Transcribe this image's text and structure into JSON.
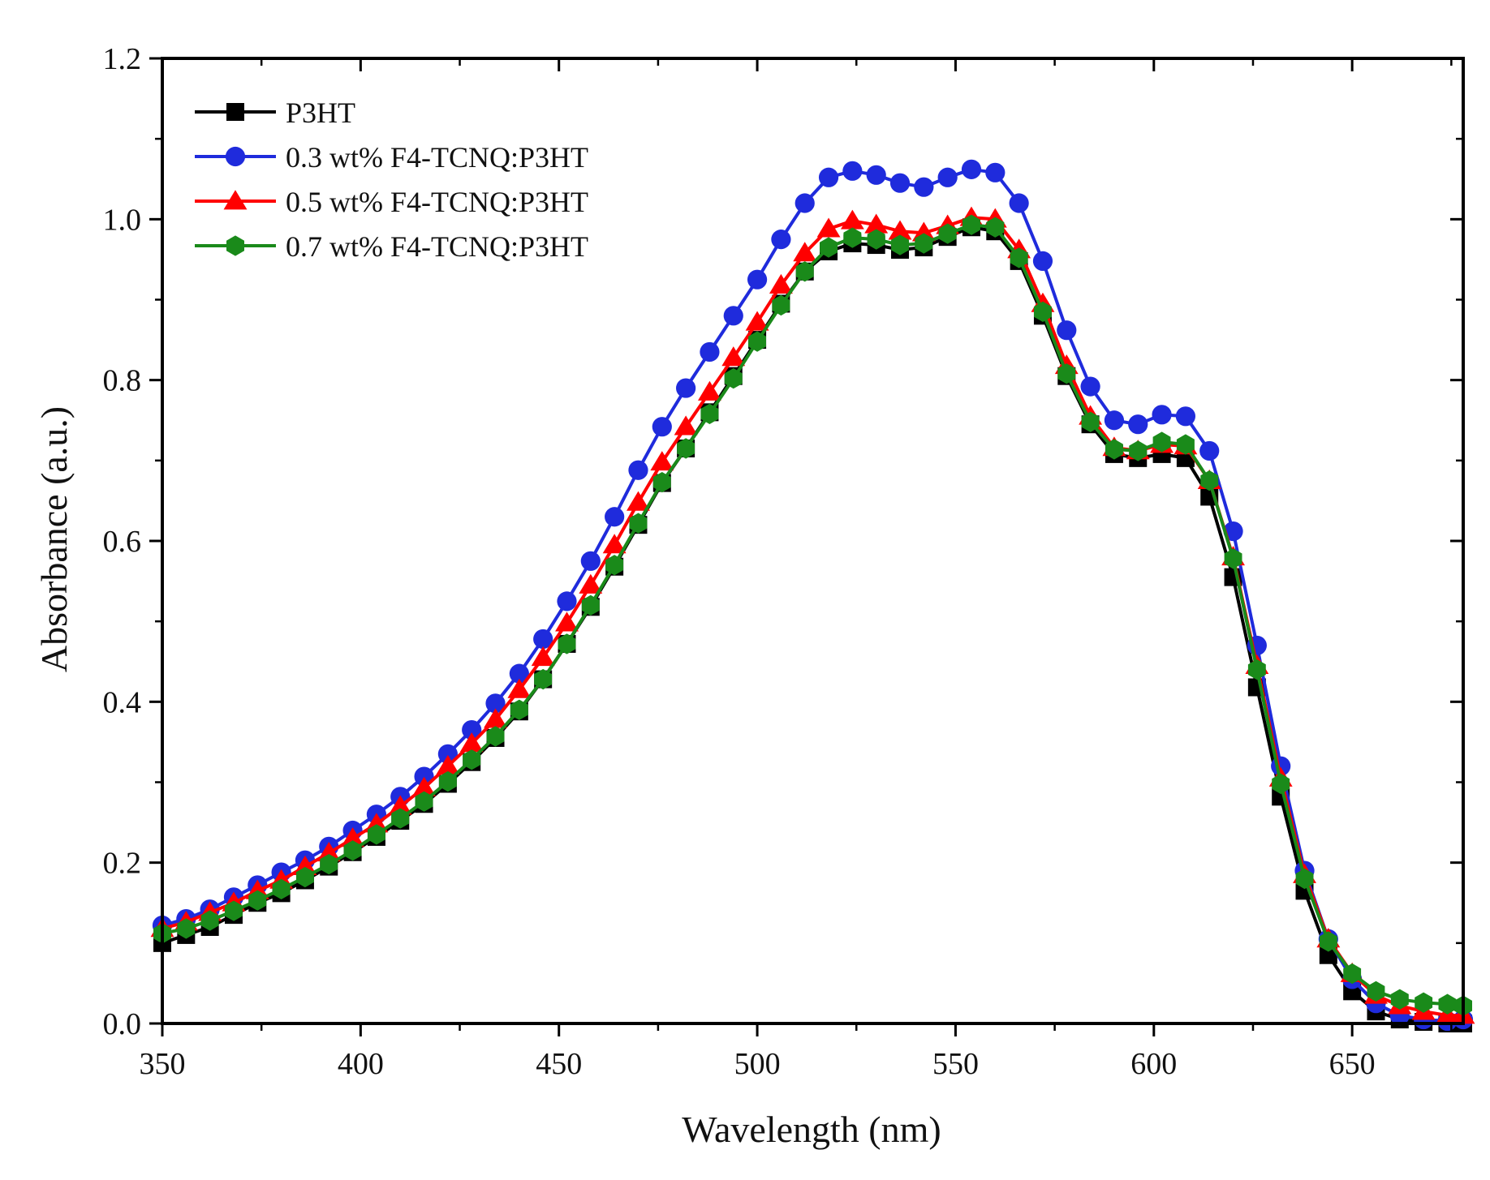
{
  "chart_data": {
    "type": "line",
    "xlabel": "Wavelength (nm)",
    "ylabel": "Absorbance (a.u.)",
    "xlim": [
      350,
      678
    ],
    "ylim": [
      0.0,
      1.2
    ],
    "x_ticks": [
      350,
      400,
      450,
      500,
      550,
      600,
      650
    ],
    "x_tick_labels": [
      "350",
      "400",
      "450",
      "500",
      "550",
      "600",
      "650"
    ],
    "y_ticks": [
      0.0,
      0.2,
      0.4,
      0.6,
      0.8,
      1.0,
      1.2
    ],
    "y_tick_labels": [
      "0.0",
      "0.2",
      "0.4",
      "0.6",
      "0.8",
      "1.0",
      "1.2"
    ],
    "grid": false,
    "legend_position": "top-left",
    "x": [
      350,
      356,
      362,
      368,
      374,
      380,
      386,
      392,
      398,
      404,
      410,
      416,
      422,
      428,
      434,
      440,
      446,
      452,
      458,
      464,
      470,
      476,
      482,
      488,
      494,
      500,
      506,
      512,
      518,
      524,
      530,
      536,
      542,
      548,
      554,
      560,
      566,
      572,
      578,
      584,
      590,
      596,
      602,
      608,
      614,
      620,
      626,
      632,
      638,
      644,
      650,
      656,
      662,
      668,
      674,
      678
    ],
    "series": [
      {
        "name": "P3HT",
        "color": "#000000",
        "marker": "square",
        "values": [
          0.1,
          0.11,
          0.12,
          0.135,
          0.15,
          0.162,
          0.178,
          0.195,
          0.213,
          0.232,
          0.252,
          0.273,
          0.298,
          0.325,
          0.355,
          0.388,
          0.428,
          0.472,
          0.518,
          0.568,
          0.62,
          0.672,
          0.715,
          0.76,
          0.805,
          0.85,
          0.895,
          0.935,
          0.96,
          0.97,
          0.968,
          0.962,
          0.965,
          0.978,
          0.99,
          0.985,
          0.948,
          0.88,
          0.805,
          0.745,
          0.708,
          0.703,
          0.708,
          0.703,
          0.655,
          0.555,
          0.418,
          0.282,
          0.165,
          0.085,
          0.04,
          0.015,
          0.005,
          0.002,
          0.0,
          0.0
        ]
      },
      {
        "name": "0.3 wt% F4-TCNQ:P3HT",
        "color": "#1f2bdc",
        "marker": "circle",
        "values": [
          0.122,
          0.13,
          0.142,
          0.157,
          0.172,
          0.188,
          0.203,
          0.22,
          0.24,
          0.26,
          0.282,
          0.307,
          0.335,
          0.365,
          0.398,
          0.435,
          0.478,
          0.525,
          0.575,
          0.63,
          0.688,
          0.742,
          0.79,
          0.835,
          0.88,
          0.925,
          0.975,
          1.02,
          1.052,
          1.06,
          1.055,
          1.045,
          1.04,
          1.052,
          1.062,
          1.058,
          1.02,
          0.948,
          0.862,
          0.792,
          0.75,
          0.745,
          0.757,
          0.755,
          0.712,
          0.612,
          0.47,
          0.32,
          0.19,
          0.105,
          0.055,
          0.025,
          0.01,
          0.005,
          0.003,
          0.005
        ]
      },
      {
        "name": "0.5 wt% F4-TCNQ:P3HT",
        "color": "#ff0000",
        "marker": "triangle",
        "values": [
          0.118,
          0.126,
          0.138,
          0.15,
          0.165,
          0.178,
          0.195,
          0.212,
          0.23,
          0.248,
          0.27,
          0.293,
          0.32,
          0.348,
          0.378,
          0.415,
          0.455,
          0.498,
          0.545,
          0.595,
          0.648,
          0.698,
          0.742,
          0.785,
          0.828,
          0.872,
          0.918,
          0.958,
          0.988,
          0.998,
          0.993,
          0.985,
          0.983,
          0.992,
          1.002,
          1.0,
          0.962,
          0.895,
          0.818,
          0.755,
          0.716,
          0.712,
          0.72,
          0.718,
          0.675,
          0.58,
          0.445,
          0.305,
          0.185,
          0.105,
          0.062,
          0.035,
          0.022,
          0.015,
          0.01,
          0.01
        ]
      },
      {
        "name": "0.7 wt% F4-TCNQ:P3HT",
        "color": "#1a8a1a",
        "marker": "hexagon",
        "values": [
          0.112,
          0.118,
          0.128,
          0.14,
          0.153,
          0.167,
          0.182,
          0.198,
          0.215,
          0.235,
          0.255,
          0.276,
          0.301,
          0.328,
          0.357,
          0.39,
          0.428,
          0.472,
          0.52,
          0.57,
          0.622,
          0.673,
          0.715,
          0.758,
          0.802,
          0.848,
          0.893,
          0.935,
          0.965,
          0.977,
          0.975,
          0.968,
          0.97,
          0.982,
          0.993,
          0.99,
          0.952,
          0.885,
          0.808,
          0.748,
          0.714,
          0.712,
          0.723,
          0.72,
          0.675,
          0.578,
          0.44,
          0.298,
          0.18,
          0.102,
          0.062,
          0.04,
          0.03,
          0.026,
          0.024,
          0.022
        ]
      }
    ]
  }
}
